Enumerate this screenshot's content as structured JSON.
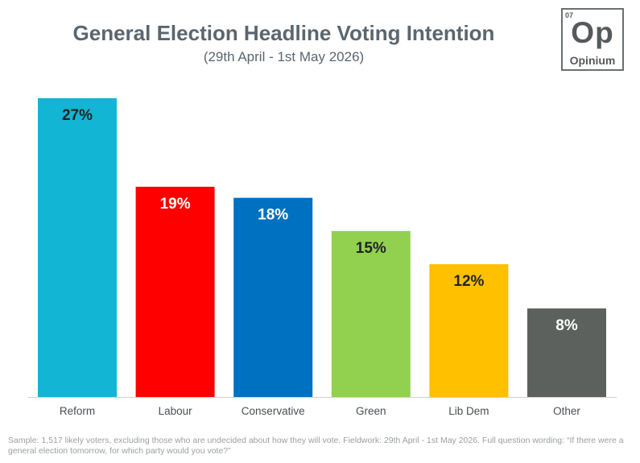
{
  "header": {
    "title": "General Election Headline Voting Intention",
    "subtitle": "(29th April - 1st May 2026)"
  },
  "logo": {
    "number": "07",
    "symbol": "Op",
    "word": "Opinium"
  },
  "chart_data": {
    "type": "bar",
    "title": "General Election Headline Voting Intention",
    "subtitle": "(29th April - 1st May 2026)",
    "categories": [
      "Reform",
      "Labour",
      "Conservative",
      "Green",
      "Lib Dem",
      "Other"
    ],
    "values": [
      27,
      19,
      18,
      15,
      12,
      8
    ],
    "data_labels": [
      "27%",
      "19%",
      "18%",
      "15%",
      "12%",
      "8%"
    ],
    "colors": [
      "#12b5d4",
      "#ff0000",
      "#0070c0",
      "#92d050",
      "#ffc000",
      "#5c615e"
    ],
    "label_colors": [
      "#222222",
      "#ffffff",
      "#ffffff",
      "#222222",
      "#222222",
      "#ffffff"
    ],
    "ylim": [
      0,
      27
    ],
    "grid": false,
    "legend": "none"
  },
  "footnote": "Sample: 1,517 likely voters, excluding those who are undecided about how they will vote. Fieldwork: 29th April - 1st May 2026. Full question wording: “If there were a general election tomorrow, for which party would you vote?”"
}
